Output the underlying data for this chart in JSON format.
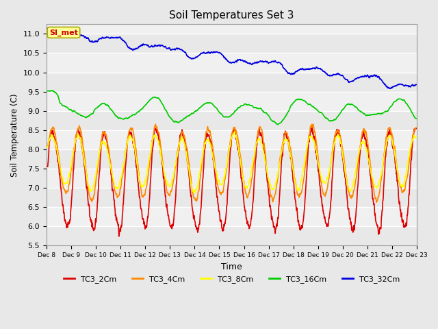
{
  "title": "Soil Temperatures Set 3",
  "xlabel": "Time",
  "ylabel": "Soil Temperature (C)",
  "ylim": [
    5.5,
    11.25
  ],
  "xlim_days": 15,
  "x_tick_labels": [
    "Dec 8",
    "Dec 9",
    "Dec 10",
    "Dec 11",
    "Dec 12",
    "Dec 13",
    "Dec 14",
    "Dec 15",
    "Dec 16",
    "Dec 17",
    "Dec 18",
    "Dec 19",
    "Dec 20",
    "Dec 21",
    "Dec 22",
    "Dec 23"
  ],
  "bg_color": "#e8e8e8",
  "plot_bg_light": "#f0f0f0",
  "plot_bg_dark": "#e0e0e0",
  "annotation_text": "SI_met",
  "annotation_color": "#cc0000",
  "annotation_bg": "#ffff99",
  "line_colors": {
    "TC3_2Cm": "#dd0000",
    "TC3_4Cm": "#ff8800",
    "TC3_8Cm": "#ffff00",
    "TC3_16Cm": "#00cc00",
    "TC3_32Cm": "#0000dd"
  },
  "legend_labels": [
    "TC3_2Cm",
    "TC3_4Cm",
    "TC3_8Cm",
    "TC3_16Cm",
    "TC3_32Cm"
  ]
}
